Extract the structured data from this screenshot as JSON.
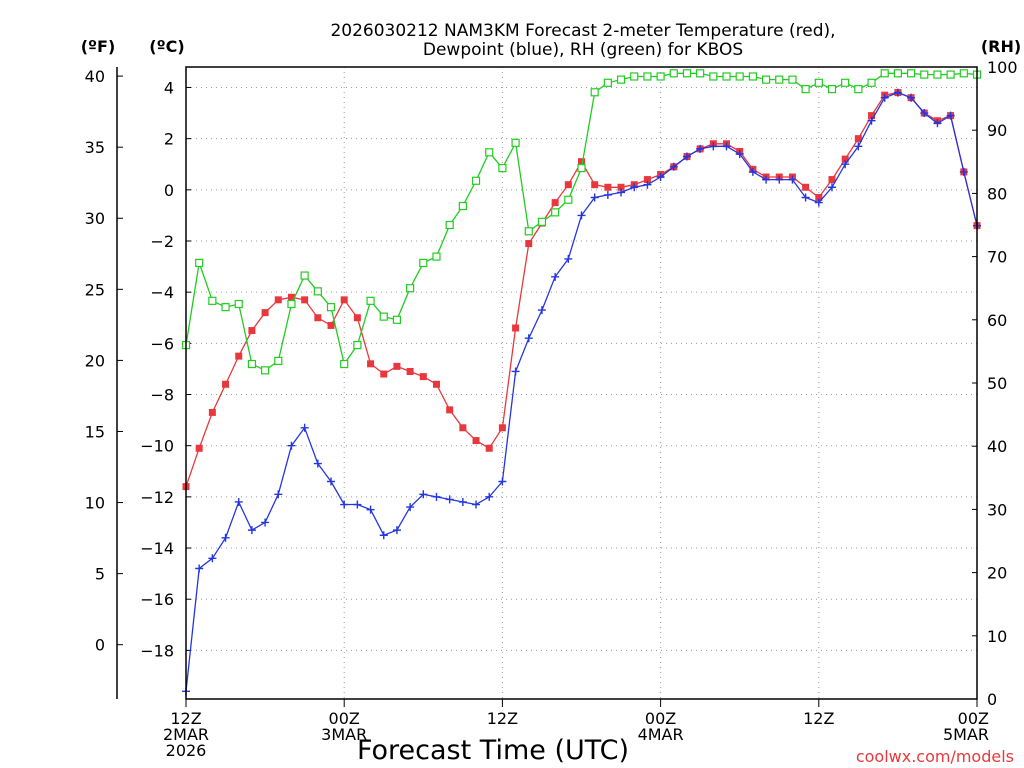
{
  "chart_data": {
    "type": "line",
    "title_line1": "2026030212 NAM3KM Forecast 2-meter Temperature (red),",
    "title_line2": "Dewpoint (blue), RH (green) for KBOS",
    "xlabel": "Forecast Time (UTC)",
    "watermark": "coolwx.com/models",
    "left_unit_f": "(ºF)",
    "left_unit_c": "(ºC)",
    "right_unit": "(RH)",
    "x_ticks": [
      {
        "hour": 0,
        "lines": [
          "12Z",
          "2MAR",
          "2026"
        ]
      },
      {
        "hour": 12,
        "lines": [
          "00Z",
          "3MAR"
        ]
      },
      {
        "hour": 24,
        "lines": [
          "12Z"
        ]
      },
      {
        "hour": 36,
        "lines": [
          "00Z",
          "4MAR"
        ]
      },
      {
        "hour": 48,
        "lines": [
          "12Z"
        ]
      },
      {
        "hour": 60,
        "lines": [
          "00Z",
          "5MAR"
        ]
      }
    ],
    "xlim": [
      0,
      60
    ],
    "celsius_axis": {
      "lim": [
        -19.9,
        4.8
      ],
      "ticks": [
        -18,
        -16,
        -14,
        -12,
        -10,
        -8,
        -6,
        -4,
        -2,
        0,
        2,
        4
      ]
    },
    "fahrenheit_axis": {
      "ticks": [
        0,
        5,
        10,
        15,
        20,
        25,
        30,
        35,
        40
      ]
    },
    "rh_axis": {
      "lim": [
        0,
        100
      ],
      "ticks": [
        0,
        10,
        20,
        30,
        40,
        50,
        60,
        70,
        80,
        90,
        100
      ]
    },
    "series": [
      {
        "name": "Temperature",
        "unit": "degC",
        "color": "#e8383d",
        "marker": "filled-square",
        "x": [
          0,
          1,
          2,
          3,
          4,
          5,
          6,
          7,
          8,
          9,
          10,
          11,
          12,
          13,
          14,
          15,
          16,
          17,
          18,
          19,
          20,
          21,
          22,
          23,
          24,
          25,
          26,
          27,
          28,
          29,
          30,
          31,
          32,
          33,
          34,
          35,
          36,
          37,
          38,
          39,
          40,
          41,
          42,
          43,
          44,
          45,
          46,
          47,
          48,
          49,
          50,
          51,
          52,
          53,
          54,
          55,
          56,
          57,
          58,
          59,
          60
        ],
        "values": [
          -11.6,
          -10.1,
          -8.7,
          -7.6,
          -6.5,
          -5.5,
          -4.8,
          -4.3,
          -4.2,
          -4.3,
          -5.0,
          -5.3,
          -4.3,
          -5.0,
          -6.8,
          -7.2,
          -6.9,
          -7.1,
          -7.3,
          -7.6,
          -8.6,
          -9.3,
          -9.8,
          -10.1,
          -9.3,
          -5.4,
          -2.1,
          -1.3,
          -0.5,
          0.2,
          1.1,
          0.2,
          0.1,
          0.1,
          0.2,
          0.4,
          0.6,
          0.9,
          1.3,
          1.6,
          1.8,
          1.8,
          1.5,
          0.8,
          0.5,
          0.5,
          0.5,
          0.1,
          -0.3,
          0.4,
          1.2,
          2.0,
          2.9,
          3.7,
          3.8,
          3.6,
          3.0,
          2.7,
          2.9,
          0.7,
          -1.4
        ]
      },
      {
        "name": "Dewpoint",
        "unit": "degC",
        "color": "#2436e0",
        "marker": "plus",
        "x": [
          0,
          1,
          2,
          3,
          4,
          5,
          6,
          7,
          8,
          9,
          10,
          11,
          12,
          13,
          14,
          15,
          16,
          17,
          18,
          19,
          20,
          21,
          22,
          23,
          24,
          25,
          26,
          27,
          28,
          29,
          30,
          31,
          32,
          33,
          34,
          35,
          36,
          37,
          38,
          39,
          40,
          41,
          42,
          43,
          44,
          45,
          46,
          47,
          48,
          49,
          50,
          51,
          52,
          53,
          54,
          55,
          56,
          57,
          58,
          59,
          60
        ],
        "values": [
          -19.6,
          -14.8,
          -14.4,
          -13.6,
          -12.2,
          -13.3,
          -13.0,
          -11.9,
          -10.0,
          -9.3,
          -10.7,
          -11.4,
          -12.3,
          -12.3,
          -12.5,
          -13.5,
          -13.3,
          -12.4,
          -11.9,
          -12.0,
          -12.1,
          -12.2,
          -12.3,
          -12.0,
          -11.4,
          -7.1,
          -5.8,
          -4.7,
          -3.4,
          -2.7,
          -1.0,
          -0.3,
          -0.2,
          -0.1,
          0.1,
          0.2,
          0.5,
          0.9,
          1.3,
          1.6,
          1.7,
          1.7,
          1.4,
          0.7,
          0.4,
          0.4,
          0.4,
          -0.3,
          -0.5,
          0.1,
          1.0,
          1.7,
          2.7,
          3.6,
          3.8,
          3.6,
          3.0,
          2.6,
          2.9,
          0.7,
          -1.4
        ]
      },
      {
        "name": "RH",
        "unit": "percent",
        "color": "#22cc22",
        "marker": "open-square",
        "x": [
          0,
          1,
          2,
          3,
          4,
          5,
          6,
          7,
          8,
          9,
          10,
          11,
          12,
          13,
          14,
          15,
          16,
          17,
          18,
          19,
          20,
          21,
          22,
          23,
          24,
          25,
          26,
          27,
          28,
          29,
          30,
          31,
          32,
          33,
          34,
          35,
          36,
          37,
          38,
          39,
          40,
          41,
          42,
          43,
          44,
          45,
          46,
          47,
          48,
          49,
          50,
          51,
          52,
          53,
          54,
          55,
          56,
          57,
          58,
          59,
          60
        ],
        "values": [
          56,
          69,
          63,
          62,
          62.5,
          53,
          52,
          53.5,
          62.5,
          67,
          64.5,
          62,
          53,
          56,
          63,
          60.5,
          60,
          65,
          69,
          70,
          75,
          78,
          82,
          86.5,
          84,
          88,
          74,
          75.5,
          77,
          79,
          84,
          96,
          97.5,
          98,
          98.5,
          98.5,
          98.5,
          99,
          99,
          99,
          98.5,
          98.5,
          98.5,
          98.5,
          98,
          98,
          98,
          96.5,
          97.5,
          96.5,
          97.5,
          96.5,
          97.5,
          99,
          99,
          99,
          98.8,
          98.8,
          98.8,
          99,
          98.8
        ]
      }
    ]
  }
}
